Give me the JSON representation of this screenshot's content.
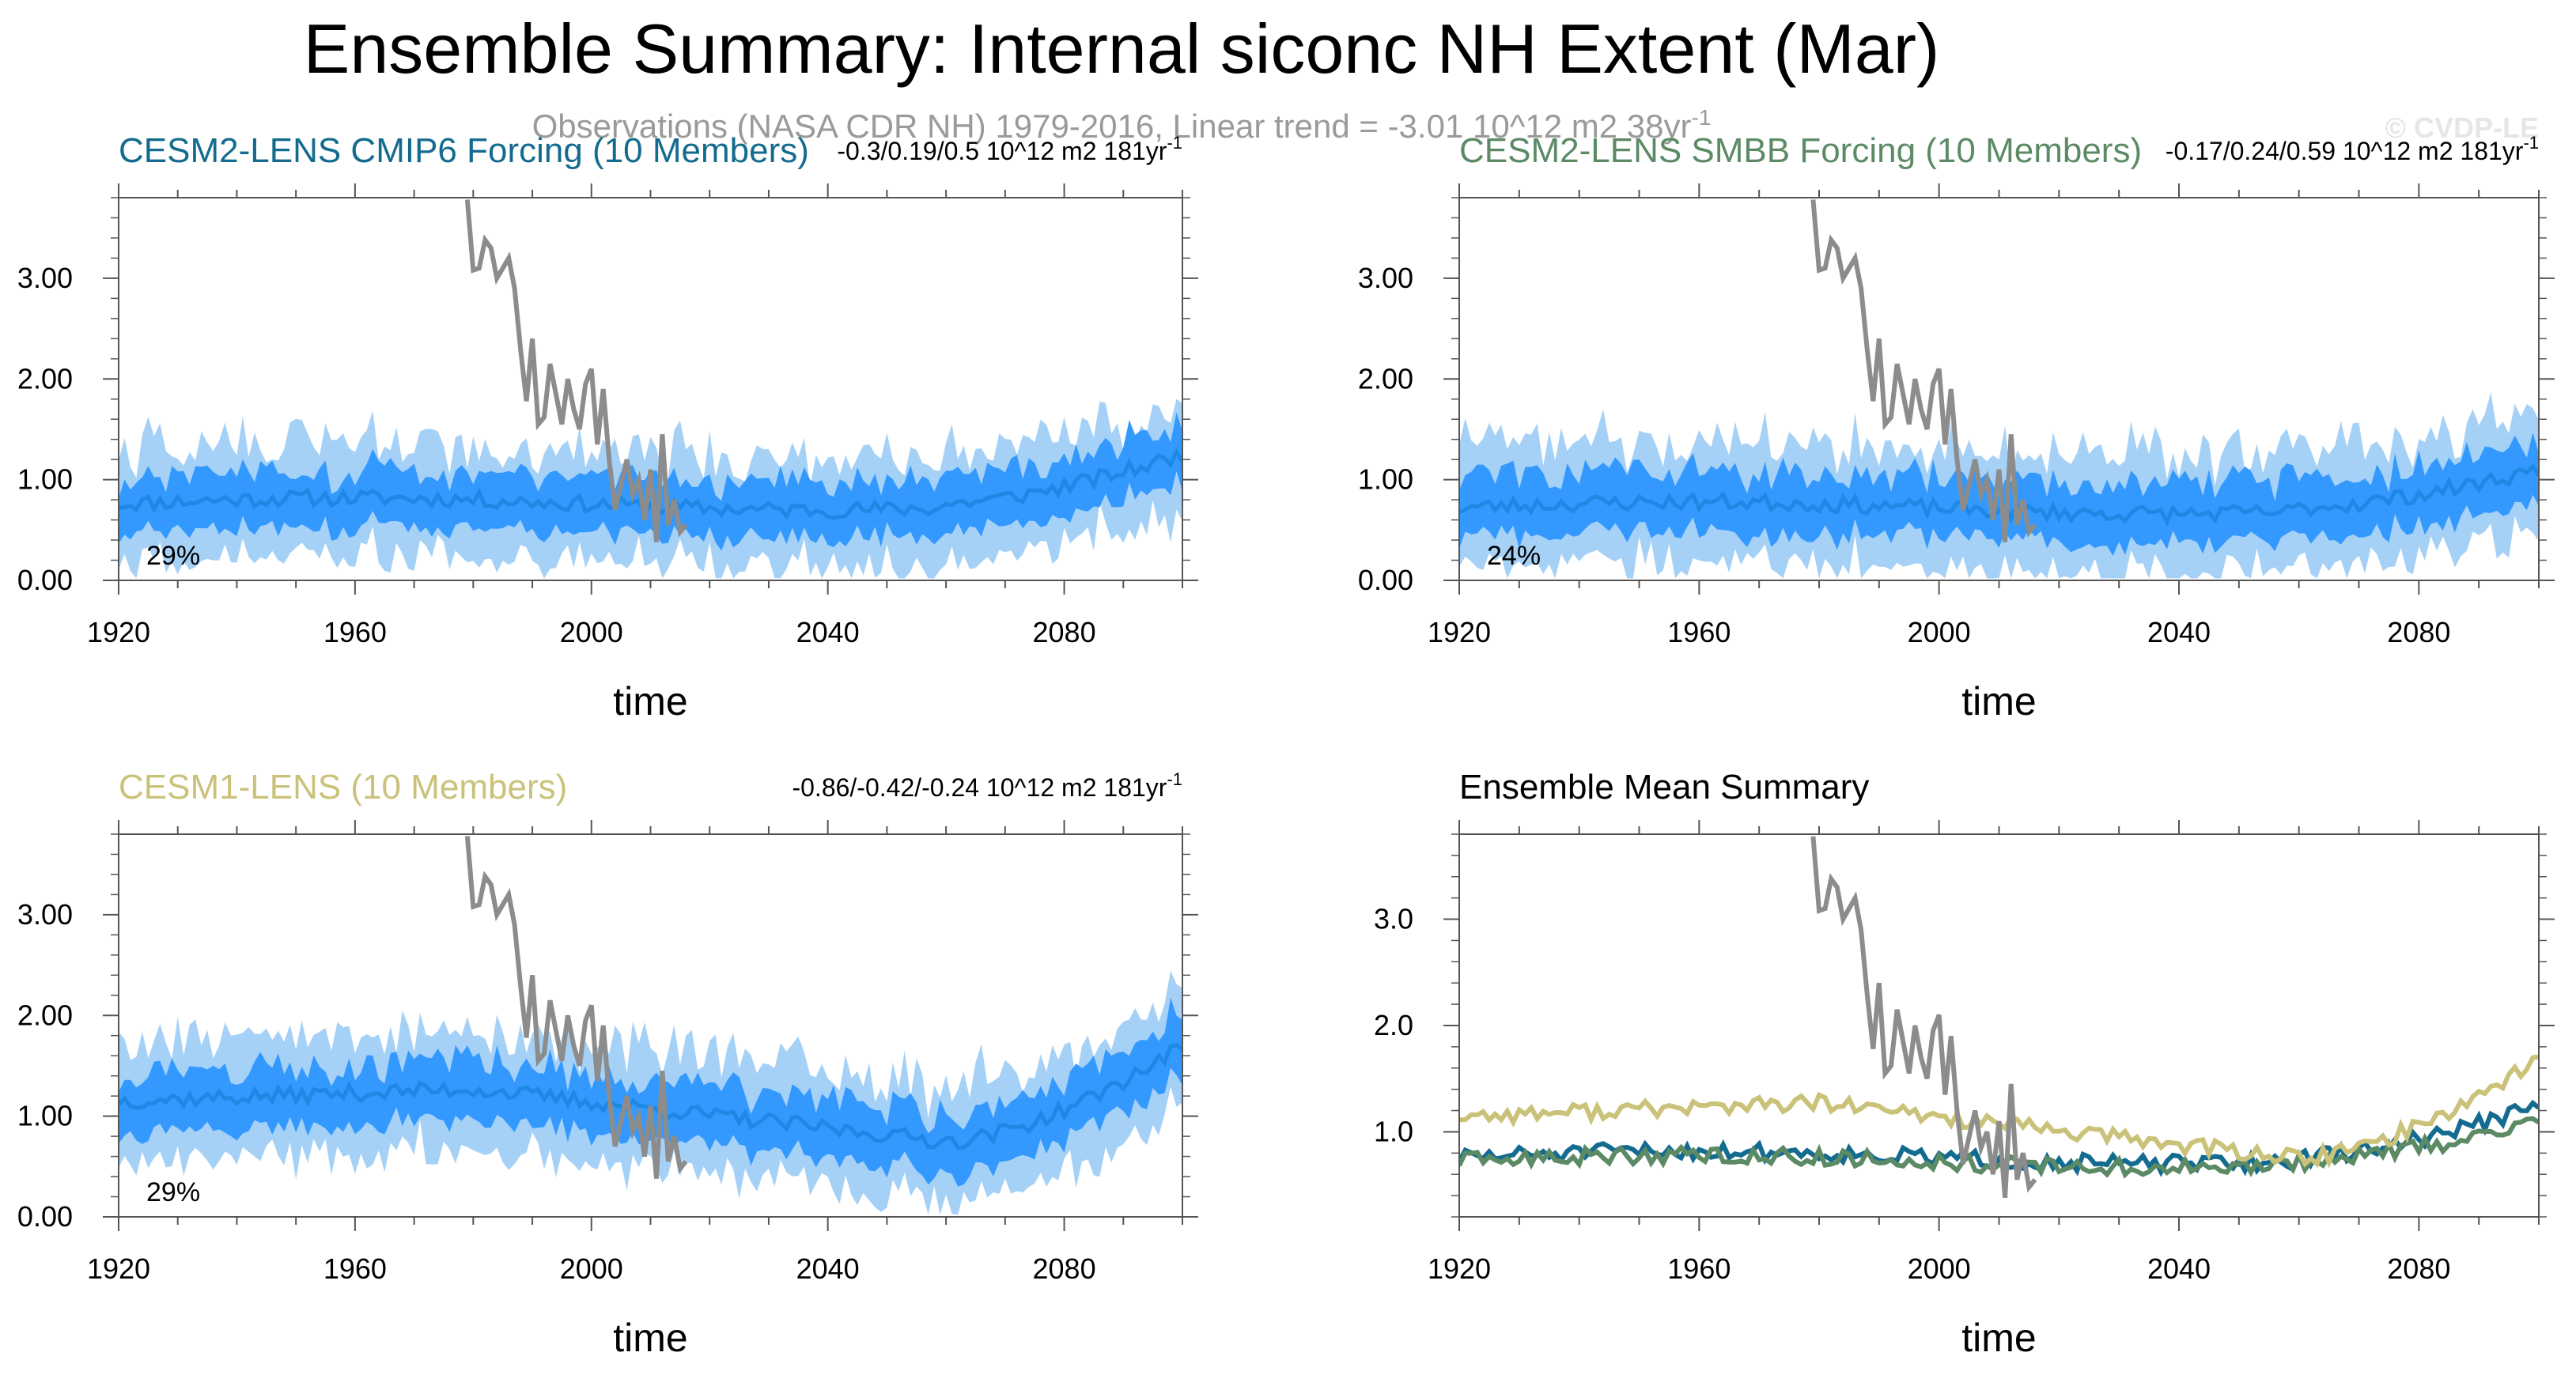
{
  "title": "Ensemble Summary: Internal siconc NH Extent (Mar)",
  "subtitle": "Observations (NASA CDR NH) 1979-2016, Linear trend = -3.01 10^12 m2 38yr",
  "subtitle_sup": "-1",
  "watermark": "© CVDP-LE",
  "colors": {
    "obs": "#8c8c8c",
    "band_outer": "#a6d1f7",
    "band_inner": "#3399ff",
    "mean_line": "#1e88e5",
    "cesm2_cmip6": "#136b8f",
    "cesm2_smbb": "#5b8a65",
    "cesm1": "#cbc27a",
    "axis": "#555555"
  },
  "observations": {
    "name": "Observations (NASA CDR NH)",
    "x": [
      1979,
      1980,
      1981,
      1982,
      1983,
      1984,
      1985,
      1986,
      1987,
      1988,
      1989,
      1990,
      1991,
      1992,
      1993,
      1994,
      1995,
      1996,
      1997,
      1998,
      1999,
      2000,
      2001,
      2002,
      2003,
      2004,
      2005,
      2006,
      2007,
      2008,
      2009,
      2010,
      2011,
      2012,
      2013,
      2014,
      2015,
      2016
    ],
    "y": [
      3.78,
      3.08,
      3.1,
      3.38,
      3.3,
      3.0,
      3.1,
      3.2,
      2.9,
      2.3,
      1.78,
      2.4,
      1.55,
      1.62,
      2.15,
      1.85,
      1.55,
      2.0,
      1.7,
      1.5,
      1.95,
      2.1,
      1.35,
      1.9,
      1.2,
      0.7,
      0.95,
      1.2,
      0.85,
      1.0,
      0.6,
      1.1,
      0.38,
      1.45,
      0.55,
      0.8,
      0.48,
      0.55
    ]
  },
  "chart_data": [
    {
      "type": "area",
      "title": "CESM2-LENS CMIP6 Forcing (10 Members)",
      "title_color": "#136b8f",
      "trend_label": "-0.3/0.19/0.5 10^12 m2 181yr",
      "trend_sup": "-1",
      "percent_label": "29%",
      "xlabel": "time",
      "ylabel": "",
      "xlim": [
        1920,
        2100
      ],
      "ylim": [
        0,
        3.8
      ],
      "xticks": [
        "1920",
        "1960",
        "2000",
        "2040",
        "2080"
      ],
      "yticks": [
        "0.00",
        "1.00",
        "2.00",
        "3.00"
      ],
      "ensemble": {
        "mean_start": 0.76,
        "mean_end": 1.25,
        "trend_shape": "flat_then_rise",
        "inner_halfwidth": 0.28,
        "outer_halfwidth": 0.55,
        "seed": 11
      }
    },
    {
      "type": "area",
      "title": "CESM2-LENS SMBB Forcing (10 Members)",
      "title_color": "#5b8a65",
      "trend_label": "-0.17/0.24/0.59 10^12 m2 181yr",
      "trend_sup": "-1",
      "percent_label": "24%",
      "xlabel": "time",
      "ylabel": "",
      "xlim": [
        1920,
        2100
      ],
      "ylim": [
        0,
        3.8
      ],
      "xticks": [
        "1920",
        "1960",
        "2000",
        "2040",
        "2080"
      ],
      "yticks": [
        "0.00",
        "1.00",
        "2.00",
        "3.00"
      ],
      "ensemble": {
        "mean_start": 0.72,
        "mean_end": 1.1,
        "trend_shape": "flat_then_rise",
        "inner_halfwidth": 0.3,
        "outer_halfwidth": 0.6,
        "seed": 23
      }
    },
    {
      "type": "area",
      "title": "CESM1-LENS (10 Members)",
      "title_color": "#cbc27a",
      "trend_label": "-0.86/-0.42/-0.24 10^12 m2 181yr",
      "trend_sup": "-1",
      "percent_label": "29%",
      "xlabel": "time",
      "ylabel": "",
      "xlim": [
        1920,
        2100
      ],
      "ylim": [
        0,
        3.8
      ],
      "xticks": [
        "1920",
        "1960",
        "2000",
        "2040",
        "2080"
      ],
      "yticks": [
        "0.00",
        "1.00",
        "2.00",
        "3.00"
      ],
      "ensemble": {
        "mean_start": 1.15,
        "mean_end": 1.7,
        "trend_shape": "hump_dip_rise",
        "inner_halfwidth": 0.3,
        "outer_halfwidth": 0.58,
        "seed": 37
      }
    },
    {
      "type": "line",
      "title": "Ensemble Mean Summary",
      "title_color": "#000000",
      "xlabel": "time",
      "ylabel": "",
      "xlim": [
        1920,
        2100
      ],
      "ylim": [
        0.2,
        3.8
      ],
      "xticks": [
        "1920",
        "1960",
        "2000",
        "2040",
        "2080"
      ],
      "yticks": [
        "1.0",
        "2.0",
        "3.0"
      ],
      "series": [
        {
          "name": "CESM2-LENS CMIP6 Forcing",
          "color": "#136b8f",
          "mean_start": 0.76,
          "mean_end": 1.25,
          "trend_shape": "flat_then_rise",
          "seed": 51
        },
        {
          "name": "CESM2-LENS SMBB Forcing",
          "color": "#5b8a65",
          "mean_start": 0.72,
          "mean_end": 1.1,
          "trend_shape": "flat_then_rise",
          "seed": 63
        },
        {
          "name": "CESM1-LENS",
          "color": "#cbc27a",
          "mean_start": 1.15,
          "mean_end": 1.7,
          "trend_shape": "hump_dip_rise",
          "seed": 77
        }
      ]
    }
  ]
}
